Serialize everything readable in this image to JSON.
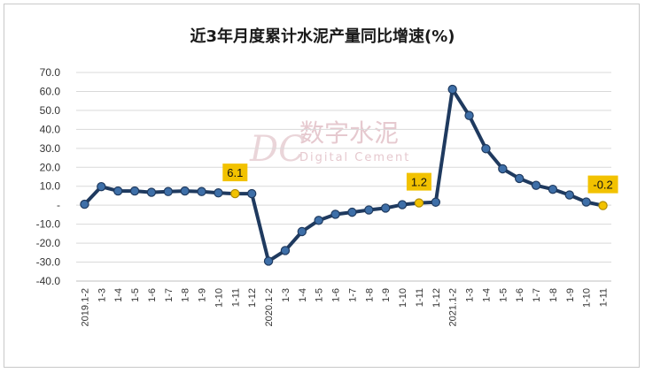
{
  "chart_data": {
    "type": "line",
    "title": "近3年月度累计水泥产量同比增速(%)",
    "xlabel": "",
    "ylabel": "",
    "ylim": [
      -40,
      70
    ],
    "yticks": [
      "70.0",
      "60.0",
      "50.0",
      "40.0",
      "30.0",
      "20.0",
      "10.0",
      "-",
      "-10.0",
      "-20.0",
      "-30.0",
      "-40.0"
    ],
    "ytick_values": [
      70,
      60,
      50,
      40,
      30,
      20,
      10,
      0,
      -10,
      -20,
      -30,
      -40
    ],
    "categories": [
      "2019.1-2",
      "1-3",
      "1-4",
      "1-5",
      "1-6",
      "1-7",
      "1-8",
      "1-9",
      "1-10",
      "1-11",
      "1-12",
      "2020.1-2",
      "1-3",
      "1-4",
      "1-5",
      "1-6",
      "1-7",
      "1-8",
      "1-9",
      "1-10",
      "1-11",
      "1-12",
      "2021.1-2",
      "1-3",
      "1-4",
      "1-5",
      "1-6",
      "1-7",
      "1-8",
      "1-9",
      "1-10",
      "1-11"
    ],
    "series": [
      {
        "values": [
          0.5,
          9.8,
          7.5,
          7.5,
          6.8,
          7.2,
          7.5,
          7.2,
          6.5,
          6.1,
          6.1,
          -29.5,
          -23.9,
          -13.9,
          -8.0,
          -4.8,
          -3.7,
          -2.5,
          -1.5,
          0.3,
          1.2,
          1.6,
          61.1,
          47.3,
          29.8,
          19.2,
          14.1,
          10.5,
          8.4,
          5.4,
          1.7,
          -0.2
        ],
        "color": "#1f3a5f"
      }
    ],
    "annotations": [
      {
        "index": 9,
        "text": "6.1"
      },
      {
        "index": 20,
        "text": "1.2"
      },
      {
        "index": 31,
        "text": "-0.2"
      }
    ],
    "highlight_color": "#f2c200",
    "grid": true,
    "legend": "none"
  },
  "watermark": {
    "logo": "DC",
    "name": "数字水泥",
    "subtitle": "Digital Cement"
  }
}
